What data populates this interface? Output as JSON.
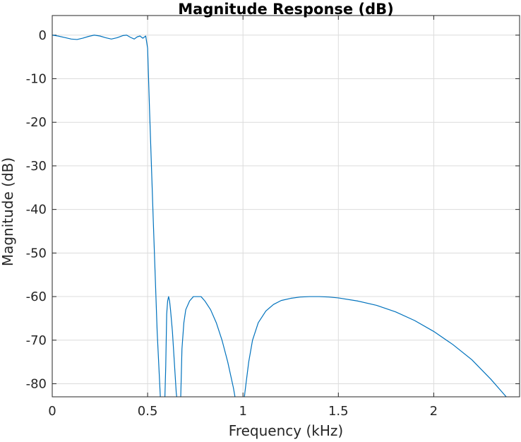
{
  "chart_data": {
    "type": "line",
    "title": "Magnitude Response (dB)",
    "xlabel": "Frequency (kHz)",
    "ylabel": "Magnitude (dB)",
    "xlim": [
      0,
      2.45
    ],
    "ylim": [
      -83,
      4.5
    ],
    "xticks": [
      0,
      0.5,
      1,
      1.5,
      2
    ],
    "xtick_labels": [
      "0",
      "0.5",
      "1",
      "1.5",
      "2"
    ],
    "yticks": [
      0,
      -10,
      -20,
      -30,
      -40,
      -50,
      -60,
      -70,
      -80
    ],
    "ytick_labels": [
      "0",
      "-10",
      "-20",
      "-30",
      "-40",
      "-50",
      "-60",
      "-70",
      "-80"
    ],
    "grid": true,
    "line_color": "#0072bd",
    "series": [
      {
        "x": [
          0,
          0.03,
          0.07,
          0.1,
          0.13,
          0.16,
          0.19,
          0.22,
          0.25,
          0.28,
          0.31,
          0.34,
          0.37,
          0.39,
          0.41,
          0.43,
          0.445,
          0.46,
          0.475,
          0.49,
          0.5,
          0.51,
          0.53,
          0.55,
          0.57,
          0.585,
          0.59,
          0.595,
          0.6,
          0.605,
          0.61,
          0.615,
          0.62,
          0.63,
          0.64,
          0.65,
          0.66,
          0.665,
          0.67,
          0.673,
          0.676,
          0.68,
          0.69,
          0.7,
          0.72,
          0.74,
          0.76,
          0.78,
          0.8,
          0.83,
          0.86,
          0.89,
          0.92,
          0.95,
          0.97,
          0.98,
          0.99,
          0.995,
          1.0,
          1.01,
          1.03,
          1.05,
          1.08,
          1.12,
          1.16,
          1.2,
          1.25,
          1.3,
          1.35,
          1.4,
          1.45,
          1.5,
          1.6,
          1.7,
          1.8,
          1.9,
          2.0,
          2.1,
          2.2,
          2.3,
          2.35,
          2.4,
          2.43,
          2.45
        ],
        "y": [
          0,
          -0.2,
          -0.6,
          -0.9,
          -1.0,
          -0.7,
          -0.3,
          0.0,
          -0.2,
          -0.6,
          -0.9,
          -0.6,
          -0.1,
          0.0,
          -0.5,
          -0.9,
          -0.4,
          -0.2,
          -0.7,
          -0.2,
          -3,
          -17,
          -43,
          -68,
          -86,
          -86,
          -84,
          -76,
          -64,
          -61,
          -60,
          -61,
          -63,
          -68,
          -75,
          -82,
          -86,
          -86,
          -86,
          -84,
          -79,
          -72,
          -66,
          -63,
          -61,
          -60,
          -60,
          -60,
          -61,
          -63,
          -66,
          -70,
          -75,
          -81,
          -86,
          -86,
          -86,
          -86,
          -86,
          -82,
          -75,
          -70,
          -66,
          -63.3,
          -61.8,
          -60.9,
          -60.4,
          -60.1,
          -60.0,
          -60.0,
          -60.1,
          -60.3,
          -61,
          -62,
          -63.5,
          -65.5,
          -68,
          -71,
          -74.5,
          -79,
          -81.5,
          -84,
          -85,
          -86
        ]
      }
    ]
  }
}
